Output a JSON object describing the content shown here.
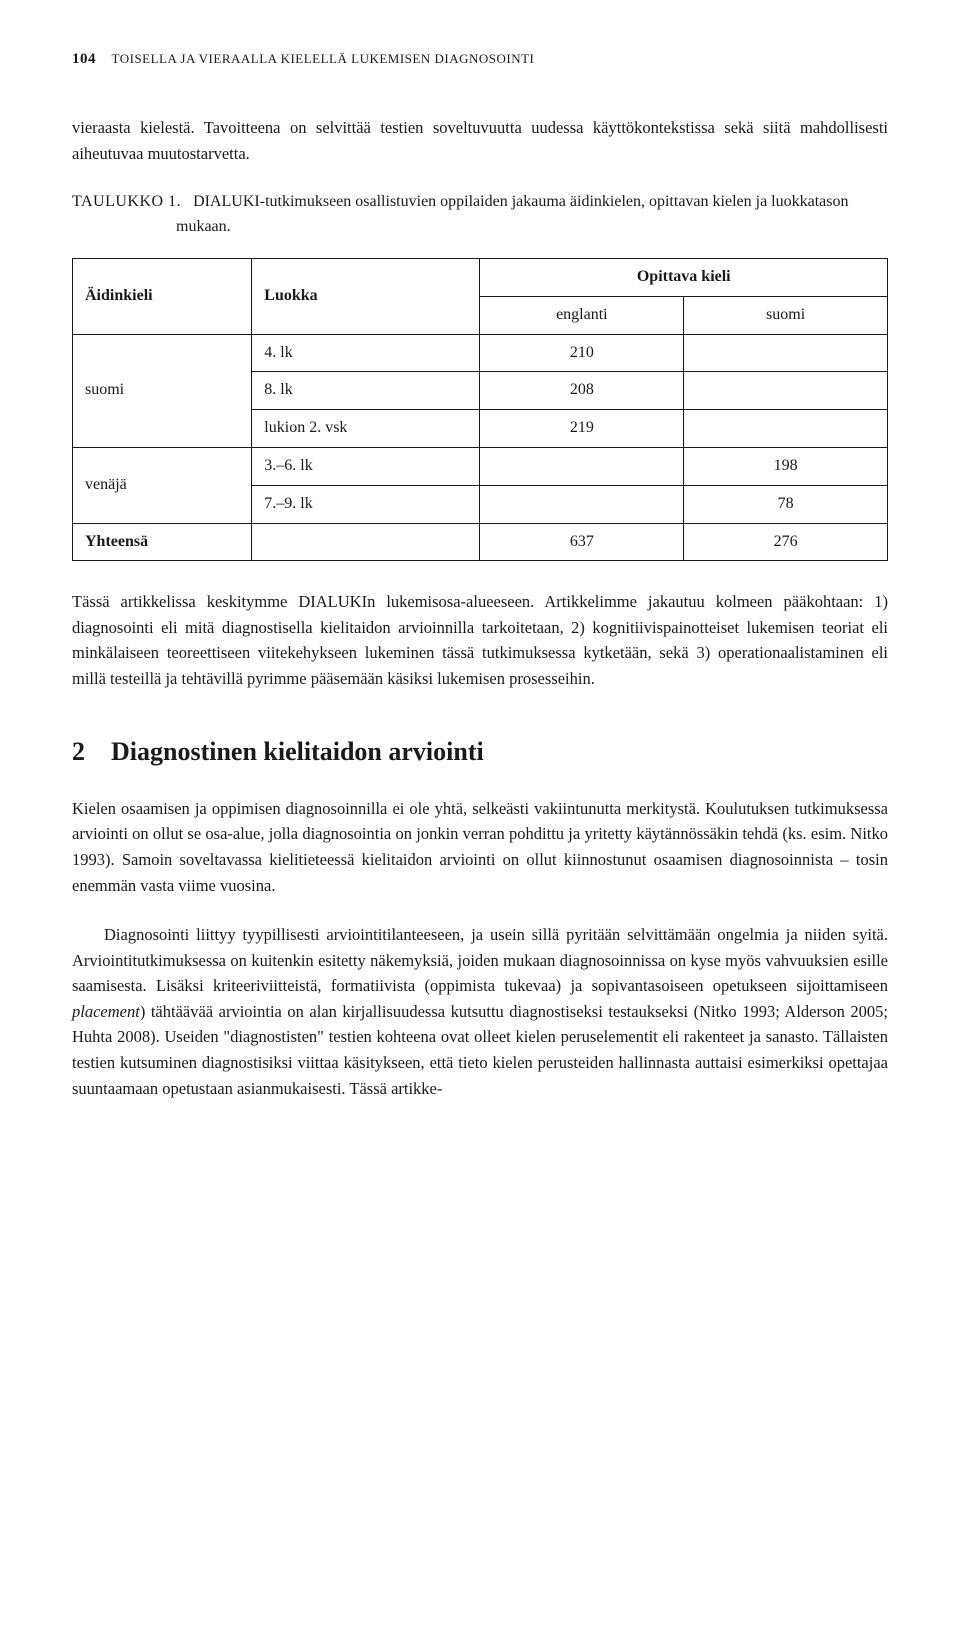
{
  "header": {
    "page_number": "104",
    "running_title": "TOISELLA JA VIERAALLA KIELELLÄ LUKEMISEN DIAGNOSOINTI"
  },
  "intro_para": "vieraasta kielestä. Tavoitteena on selvittää testien soveltuvuutta uudessa käyttökontekstissa sekä siitä mahdollisesti aiheutuvaa muutostarvetta.",
  "table_caption": {
    "label": "TAULUKKO 1.",
    "text": "DIALUKI-tutkimukseen osallistuvien oppilaiden jakauma äidinkielen, opittavan kielen ja luokkatason mukaan."
  },
  "table": {
    "headers": {
      "aidinkieli": "Äidinkieli",
      "luokka": "Luokka",
      "opittava": "Opittava kieli",
      "englanti": "englanti",
      "suomi": "suomi"
    },
    "rows": {
      "suomi_label": "suomi",
      "r1_luokka": "4. lk",
      "r1_eng": "210",
      "r1_suo": "",
      "r2_luokka": "8. lk",
      "r2_eng": "208",
      "r2_suo": "",
      "r3_luokka": "lukion 2. vsk",
      "r3_eng": "219",
      "r3_suo": "",
      "venaja_label": "venäjä",
      "r4_luokka": "3.–6. lk",
      "r4_eng": "",
      "r4_suo": "198",
      "r5_luokka": "7.–9. lk",
      "r5_eng": "",
      "r5_suo": "78",
      "yhteensa_label": "Yhteensä",
      "tot_eng": "637",
      "tot_suo": "276"
    }
  },
  "para_after_table_pre": "Tässä artikkelissa keskitymme DIALUKIn lukemisosa-alueeseen. Artikkelimme jakautuu kolmeen pääkohtaan: 1) diagnosointi eli mitä diagnostisella kielitaidon arvioinnilla tarkoitetaan, 2) kognitiivispainotteiset lukemisen teoriat eli minkälaiseen teoreettiseen viitekehykseen lukeminen tässä tutkimuksessa kytketään, sekä 3) operationaalistaminen eli millä testeillä ja tehtävillä pyrimme pääsemään käsiksi lukemisen prosesseihin.",
  "section2": {
    "number": "2",
    "title": "Diagnostinen kielitaidon arviointi"
  },
  "para_s2_1": "Kielen osaamisen ja oppimisen diagnosoinnilla ei ole yhtä, selkeästi vakiintunutta merkitystä. Koulutuksen tutkimuksessa arviointi on ollut se osa-alue, jolla diagnosointia on jonkin verran pohdittu ja yritetty käytännössäkin tehdä (ks. esim. Nitko 1993). Samoin soveltavassa kielitieteessä kielitaidon arviointi on ollut kiinnostunut osaamisen diagnosoinnista – tosin enemmän vasta viime vuosina.",
  "para_s2_2_before_em": "Diagnosointi liittyy tyypillisesti arviointitilanteeseen, ja usein sillä pyritään selvittämään ongelmia ja niiden syitä. Arviointitutkimuksessa on kuitenkin esitetty näkemyksiä, joiden mukaan diagnosoinnissa on kyse myös vahvuuksien esille saamisesta. Lisäksi kriteeriviitteistä, formatiivista (oppimista tukevaa) ja sopivantasoiseen opetukseen sijoittamiseen ",
  "para_s2_2_em": "placement",
  "para_s2_2_after_em": ") tähtäävää arviointia on alan kirjallisuudessa kutsuttu diagnostiseksi testaukseksi (Nitko 1993; Alderson 2005; Huhta 2008). Useiden \"diagnostisten\" testien kohteena ovat olleet kielen peruselementit eli rakenteet ja sanasto. Tällaisten testien kutsuminen diagnostisiksi viittaa käsitykseen, että tieto kielen perusteiden hallinnasta auttaisi esimerkiksi opettajaa suuntaamaan opetustaan asianmukaisesti. Tässä artikke-"
}
